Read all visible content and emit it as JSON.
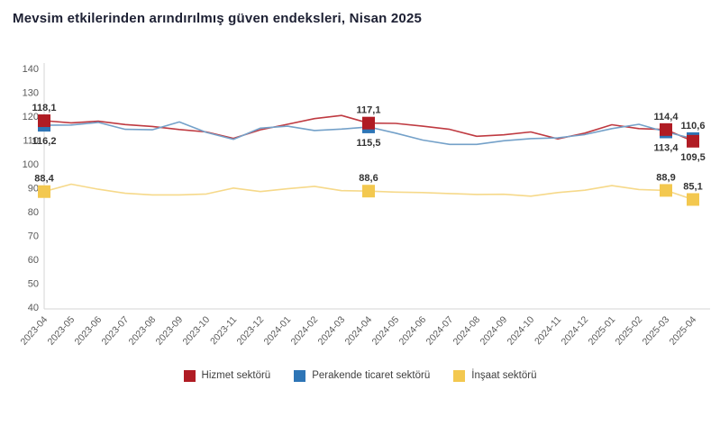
{
  "title": "Mevsim etkilerinden arındırılmış güven endeksleri, Nisan 2025",
  "chart_data": {
    "type": "line",
    "title": "Mevsim etkilerinden arındırılmış güven endeksleri, Nisan 2025",
    "xlabel": "",
    "ylabel": "",
    "ylim": [
      40,
      140
    ],
    "ytick_step": 10,
    "grid": false,
    "legend_position": "bottom",
    "x": [
      "2023-04",
      "2023-05",
      "2023-06",
      "2023-07",
      "2023-08",
      "2023-09",
      "2023-10",
      "2023-11",
      "2023-12",
      "2024-01",
      "2024-02",
      "2024-03",
      "2024-04",
      "2024-05",
      "2024-06",
      "2024-07",
      "2024-08",
      "2024-09",
      "2024-10",
      "2024-11",
      "2024-12",
      "2025-01",
      "2025-02",
      "2025-03",
      "2025-04"
    ],
    "series": [
      {
        "name": "Hizmet sektörü",
        "marker_color": "#b01c24",
        "line_color": "#bf3a41",
        "values": [
          118.1,
          117.2,
          117.9,
          116.5,
          115.7,
          114.4,
          113.4,
          110.7,
          114.3,
          116.6,
          119.0,
          120.3,
          117.1,
          117.0,
          115.8,
          114.5,
          111.6,
          112.2,
          113.4,
          110.5,
          112.9,
          116.4,
          114.8,
          114.4,
          109.5
        ],
        "annotations": [
          {
            "x": "2023-04",
            "value": 118.1,
            "label": "118,1",
            "label_pos": "above"
          },
          {
            "x": "2024-04",
            "value": 117.1,
            "label": "117,1",
            "label_pos": "above"
          },
          {
            "x": "2025-03",
            "value": 114.4,
            "label": "114,4",
            "label_pos": "above"
          },
          {
            "x": "2025-04",
            "value": 109.5,
            "label": "109,5",
            "label_pos": "below"
          }
        ]
      },
      {
        "name": "Perakende ticaret sektörü",
        "marker_color": "#2e75b6",
        "line_color": "#74a1c9",
        "values": [
          116.2,
          116.3,
          117.4,
          114.5,
          114.3,
          117.6,
          113.2,
          110.3,
          115.0,
          115.8,
          114.0,
          114.6,
          115.5,
          112.9,
          110.0,
          108.2,
          108.2,
          109.7,
          110.6,
          110.9,
          112.3,
          114.8,
          116.6,
          113.4,
          110.6
        ],
        "annotations": [
          {
            "x": "2023-04",
            "value": 116.2,
            "label": "116,2",
            "label_pos": "below"
          },
          {
            "x": "2024-04",
            "value": 115.5,
            "label": "115,5",
            "label_pos": "below"
          },
          {
            "x": "2025-03",
            "value": 113.4,
            "label": "113,4",
            "label_pos": "below"
          },
          {
            "x": "2025-04",
            "value": 110.6,
            "label": "110,6",
            "label_pos": "above"
          }
        ]
      },
      {
        "name": "İnşaat sektörü",
        "marker_color": "#f3c84f",
        "line_color": "#f6d98a",
        "values": [
          88.4,
          91.5,
          89.4,
          87.7,
          87.0,
          87.0,
          87.4,
          89.9,
          88.4,
          89.6,
          90.6,
          88.8,
          88.6,
          88.2,
          88.0,
          87.6,
          87.2,
          87.3,
          86.5,
          88.0,
          89.0,
          90.9,
          89.3,
          88.9,
          85.1
        ],
        "annotations": [
          {
            "x": "2023-04",
            "value": 88.4,
            "label": "88,4",
            "label_pos": "above"
          },
          {
            "x": "2024-04",
            "value": 88.6,
            "label": "88,6",
            "label_pos": "above"
          },
          {
            "x": "2025-03",
            "value": 88.9,
            "label": "88,9",
            "label_pos": "above"
          },
          {
            "x": "2025-04",
            "value": 85.1,
            "label": "85,1",
            "label_pos": "above"
          }
        ]
      }
    ]
  },
  "legend": {
    "items": [
      {
        "label": "Hizmet sektörü",
        "color": "#b01c24"
      },
      {
        "label": "Perakende ticaret sektörü",
        "color": "#2e75b6"
      },
      {
        "label": "İnşaat sektörü",
        "color": "#f3c84f"
      }
    ]
  },
  "axis_colors": {
    "axis_line": "#d6d6d6",
    "tick_text": "#595959"
  }
}
